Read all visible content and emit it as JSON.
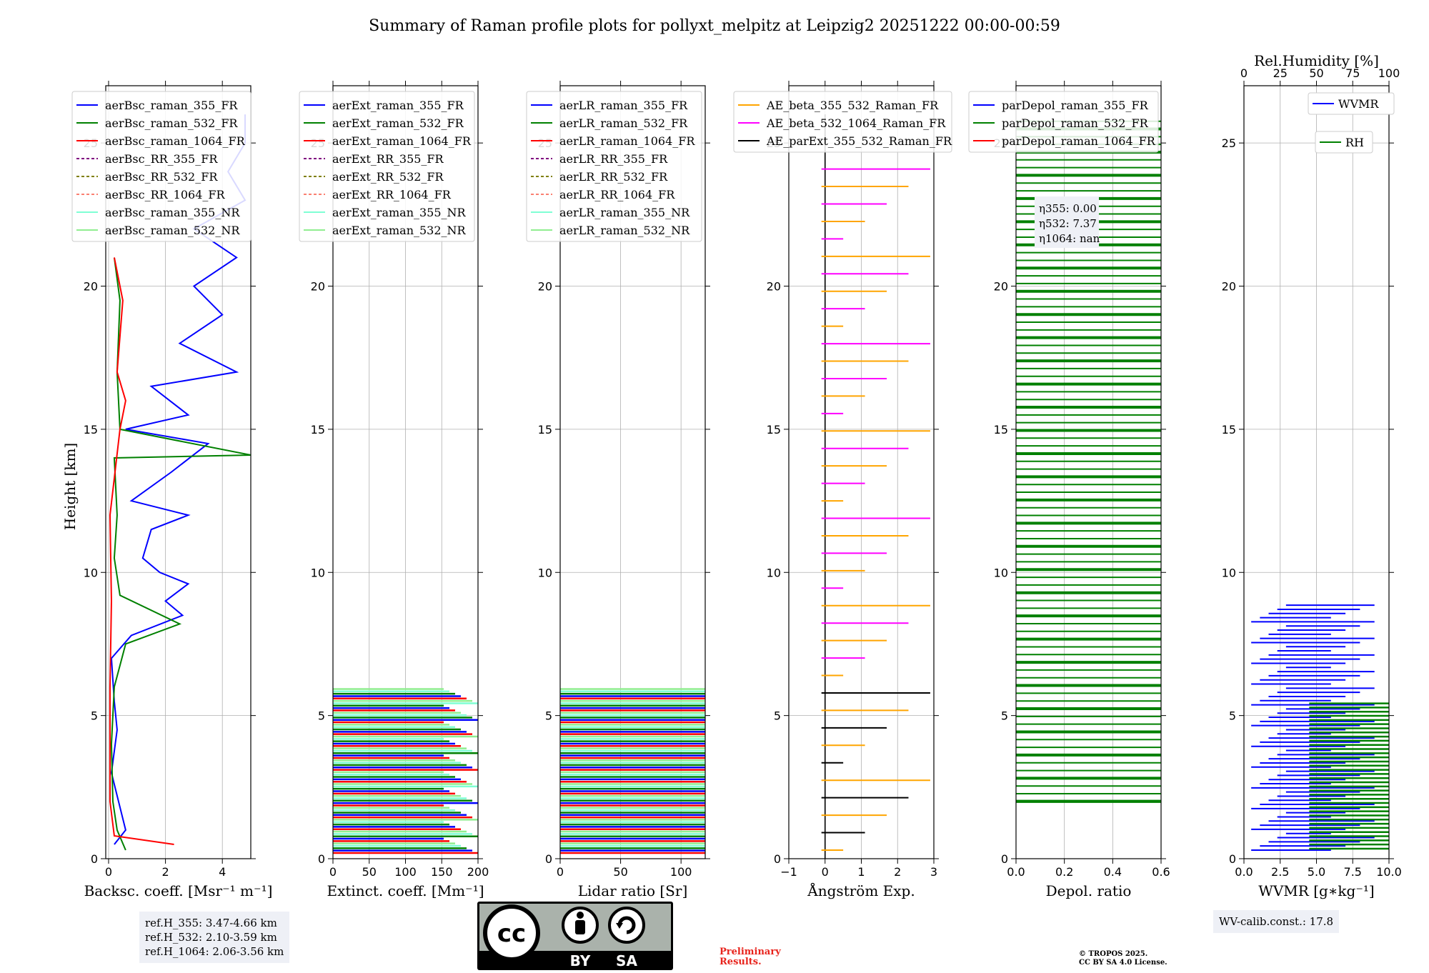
{
  "title": "Summary of Raman profile plots for pollyxt_melpitz at Leipzig2 20251222 00:00-00:59",
  "colors": {
    "blue": "#0000ff",
    "green": "#008000",
    "red": "#ff0000",
    "purple_dash": "#800080",
    "olive_dash": "#808000",
    "salmon_dash": "#fa8072",
    "aqua": "#7fffd4",
    "lightgreen": "#90ee90",
    "orange": "#ffa500",
    "magenta": "#ff00ff",
    "black": "#000000",
    "prelim": "#e8231c"
  },
  "notes": {
    "refH": [
      "ref.H_355: 3.47-4.66 km",
      "ref.H_532: 2.10-3.59 km",
      "ref.H_1064: 2.06-3.56 km"
    ],
    "eta": [
      "η355: 0.00",
      "η532: 7.37",
      "η1064: nan"
    ],
    "wv_calib": "WV-calib.const.: 17.8",
    "preliminary": [
      "Preliminary",
      "Results."
    ],
    "copyright": [
      "© TROPOS 2025.",
      "CC BY SA 4.0 License."
    ],
    "cc_badge": {
      "logo": "cc",
      "by": "BY",
      "sa": "SA"
    }
  },
  "chart_data": [
    {
      "id": "bsc",
      "type": "line",
      "xlabel": "Backsc. coeff. [Msr⁻¹ m⁻¹]",
      "ylabel": "Height [km]",
      "xlim": [
        -0.1,
        5
      ],
      "ylim": [
        0,
        27
      ],
      "xticks": [
        "0",
        "2",
        "4"
      ],
      "xtick_values": [
        0,
        2,
        4
      ],
      "yticks": [
        "0",
        "5",
        "10",
        "15",
        "20",
        "25"
      ],
      "legend": [
        {
          "name": "aerBsc_raman_355_FR",
          "color": "#0000ff",
          "dash": false
        },
        {
          "name": "aerBsc_raman_532_FR",
          "color": "#008000",
          "dash": false
        },
        {
          "name": "aerBsc_raman_1064_FR",
          "color": "#ff0000",
          "dash": false
        },
        {
          "name": "aerBsc_RR_355_FR",
          "color": "#800080",
          "dash": true
        },
        {
          "name": "aerBsc_RR_532_FR",
          "color": "#808000",
          "dash": true
        },
        {
          "name": "aerBsc_RR_1064_FR",
          "color": "#fa8072",
          "dash": true
        },
        {
          "name": "aerBsc_raman_355_NR",
          "color": "#7fffd4",
          "dash": false
        },
        {
          "name": "aerBsc_raman_532_NR",
          "color": "#90ee90",
          "dash": false
        }
      ],
      "series": [
        {
          "name": "aerBsc_raman_355_FR",
          "color": "#0000ff",
          "points": [
            [
              0.2,
              0.5
            ],
            [
              0.6,
              1
            ],
            [
              0.1,
              3
            ],
            [
              0.3,
              4.5
            ],
            [
              0.2,
              5.5
            ],
            [
              0.1,
              7
            ],
            [
              0.8,
              7.8
            ],
            [
              2.6,
              8.5
            ],
            [
              2.0,
              9
            ],
            [
              2.8,
              9.6
            ],
            [
              1.8,
              10
            ],
            [
              1.2,
              10.5
            ],
            [
              1.5,
              11.5
            ],
            [
              2.8,
              12
            ],
            [
              0.8,
              12.5
            ],
            [
              2.2,
              13.5
            ],
            [
              3.5,
              14.5
            ],
            [
              0.6,
              15
            ],
            [
              2.8,
              15.5
            ],
            [
              1.5,
              16.5
            ],
            [
              4.5,
              17
            ],
            [
              2.5,
              18
            ],
            [
              4.0,
              19
            ],
            [
              3.0,
              20
            ],
            [
              4.5,
              21
            ],
            [
              3.0,
              22
            ],
            [
              4.8,
              23
            ],
            [
              4.2,
              24
            ],
            [
              4.8,
              25
            ],
            [
              4.8,
              26
            ]
          ]
        },
        {
          "name": "aerBsc_raman_532_FR",
          "color": "#008000",
          "points": [
            [
              0.6,
              0.3
            ],
            [
              0.3,
              1
            ],
            [
              0.15,
              2
            ],
            [
              0.1,
              4
            ],
            [
              0.2,
              6
            ],
            [
              0.6,
              7.5
            ],
            [
              2.5,
              8.2
            ],
            [
              0.4,
              9.2
            ],
            [
              0.2,
              10.5
            ],
            [
              0.3,
              12
            ],
            [
              0.2,
              14
            ],
            [
              5,
              14.1
            ],
            [
              0.4,
              15
            ],
            [
              0.3,
              17
            ],
            [
              0.4,
              19.5
            ],
            [
              0.2,
              21
            ]
          ]
        },
        {
          "name": "aerBsc_raman_1064_FR",
          "color": "#ff0000",
          "points": [
            [
              2.3,
              0.5
            ],
            [
              0.2,
              0.8
            ],
            [
              0.05,
              2
            ],
            [
              0.05,
              6
            ],
            [
              0.1,
              9
            ],
            [
              0.05,
              12
            ],
            [
              0.4,
              15
            ],
            [
              0.6,
              16
            ],
            [
              0.3,
              17
            ],
            [
              0.5,
              19.5
            ],
            [
              0.2,
              21
            ]
          ]
        }
      ]
    },
    {
      "id": "ext",
      "type": "line",
      "xlabel": "Extinct. coeff. [Mm⁻¹]",
      "xlim": [
        0,
        200
      ],
      "ylim": [
        0,
        27
      ],
      "xticks": [
        "0",
        "50",
        "100",
        "150",
        "200"
      ],
      "xtick_values": [
        0,
        50,
        100,
        150,
        200
      ],
      "yticks": [
        "0",
        "5",
        "10",
        "15",
        "20",
        "25"
      ],
      "legend": [
        {
          "name": "aerExt_raman_355_FR",
          "color": "#0000ff",
          "dash": false
        },
        {
          "name": "aerExt_raman_532_FR",
          "color": "#008000",
          "dash": false
        },
        {
          "name": "aerExt_raman_1064_FR",
          "color": "#ff0000",
          "dash": false
        },
        {
          "name": "aerExt_RR_355_FR",
          "color": "#800080",
          "dash": true
        },
        {
          "name": "aerExt_RR_532_FR",
          "color": "#808000",
          "dash": true
        },
        {
          "name": "aerExt_RR_1064_FR",
          "color": "#fa8072",
          "dash": true
        },
        {
          "name": "aerExt_raman_355_NR",
          "color": "#7fffd4",
          "dash": false
        },
        {
          "name": "aerExt_raman_532_NR",
          "color": "#90ee90",
          "dash": false
        }
      ],
      "series": []
    },
    {
      "id": "lr",
      "type": "line",
      "xlabel": "Lidar ratio [Sr]",
      "xlim": [
        0,
        120
      ],
      "ylim": [
        0,
        27
      ],
      "xticks": [
        "0",
        "50",
        "100"
      ],
      "xtick_values": [
        0,
        50,
        100
      ],
      "yticks": [
        "0",
        "5",
        "10",
        "15",
        "20",
        "25"
      ],
      "legend": [
        {
          "name": "aerLR_raman_355_FR",
          "color": "#0000ff",
          "dash": false
        },
        {
          "name": "aerLR_raman_532_FR",
          "color": "#008000",
          "dash": false
        },
        {
          "name": "aerLR_raman_1064_FR",
          "color": "#ff0000",
          "dash": false
        },
        {
          "name": "aerLR_RR_355_FR",
          "color": "#800080",
          "dash": true
        },
        {
          "name": "aerLR_RR_532_FR",
          "color": "#808000",
          "dash": true
        },
        {
          "name": "aerLR_RR_1064_FR",
          "color": "#fa8072",
          "dash": true
        },
        {
          "name": "aerLR_raman_355_NR",
          "color": "#7fffd4",
          "dash": false
        },
        {
          "name": "aerLR_raman_532_NR",
          "color": "#90ee90",
          "dash": false
        }
      ],
      "series": []
    },
    {
      "id": "ae",
      "type": "line",
      "xlabel": "Ångström Exp.",
      "xlim": [
        -1,
        3
      ],
      "ylim": [
        0,
        27
      ],
      "xticks": [
        "−1",
        "0",
        "1",
        "2",
        "3"
      ],
      "xtick_values": [
        -1,
        0,
        1,
        2,
        3
      ],
      "yticks": [
        "0",
        "5",
        "10",
        "15",
        "20",
        "25"
      ],
      "legend": [
        {
          "name": "AE_beta_355_532_Raman_FR",
          "color": "#ffa500",
          "dash": false
        },
        {
          "name": "AE_beta_532_1064_Raman_FR",
          "color": "#ff00ff",
          "dash": false
        },
        {
          "name": "AE_parExt_355_532_Raman_FR",
          "color": "#000000",
          "dash": false
        }
      ],
      "series": []
    },
    {
      "id": "depol",
      "type": "line",
      "xlabel": "Depol. ratio",
      "xlim": [
        0,
        0.6
      ],
      "ylim": [
        0,
        27
      ],
      "xticks": [
        "0.0",
        "0.2",
        "0.4",
        "0.6"
      ],
      "xtick_values": [
        0,
        0.2,
        0.4,
        0.6
      ],
      "yticks": [
        "0",
        "5",
        "10",
        "15",
        "20",
        "25"
      ],
      "legend": [
        {
          "name": "parDepol_raman_355_FR",
          "color": "#0000ff",
          "dash": false
        },
        {
          "name": "parDepol_raman_532_FR",
          "color": "#008000",
          "dash": false
        },
        {
          "name": "parDepol_raman_1064_FR",
          "color": "#ff0000",
          "dash": false
        }
      ],
      "series": []
    },
    {
      "id": "wv",
      "type": "line",
      "xlabel": "WVMR [g∗kg⁻¹]",
      "xlim": [
        0,
        10
      ],
      "ylim": [
        0,
        27
      ],
      "xticks": [
        "0.0",
        "2.5",
        "5.0",
        "7.5",
        "10.0"
      ],
      "xtick_values": [
        0,
        2.5,
        5,
        7.5,
        10
      ],
      "yticks": [
        "0",
        "5",
        "10",
        "15",
        "20",
        "25"
      ],
      "top_axis": {
        "label": "Rel.Humidity [%]",
        "lim": [
          0,
          100
        ],
        "ticks": [
          "0",
          "25",
          "50",
          "75",
          "100"
        ],
        "tick_values": [
          0,
          25,
          50,
          75,
          100
        ]
      },
      "legend": [
        {
          "name": "WVMR",
          "color": "#0000ff",
          "dash": false
        },
        {
          "name": "RH",
          "color": "#008000",
          "dash": false
        }
      ],
      "series": []
    }
  ]
}
